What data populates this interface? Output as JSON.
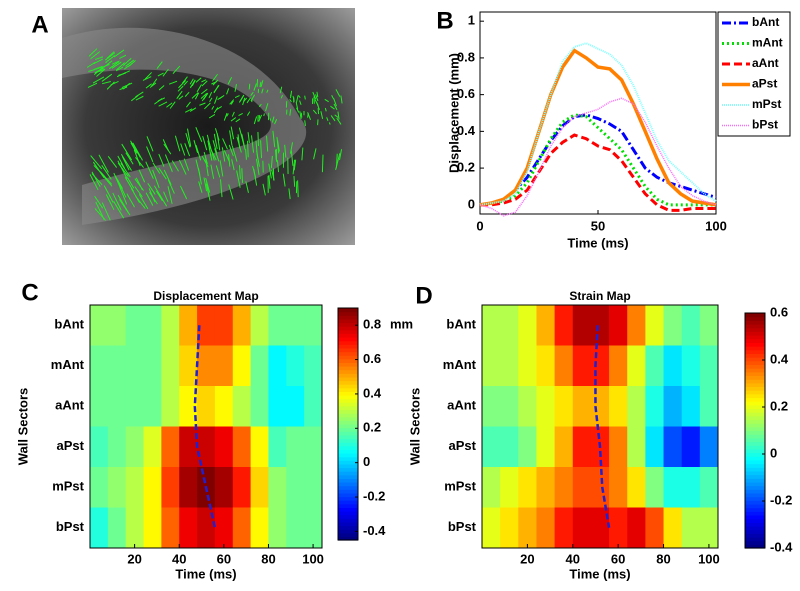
{
  "chart_data": [
    {
      "type": "image",
      "panel_label": "A"
    },
    {
      "type": "line",
      "panel_label": "B",
      "y_label": "Displacement (mm)",
      "x_label": "Time (ms)",
      "x": [
        0,
        5,
        10,
        15,
        20,
        25,
        30,
        35,
        40,
        45,
        50,
        55,
        60,
        65,
        70,
        75,
        80,
        85,
        90,
        95,
        100
      ],
      "xlim": [
        0,
        100
      ],
      "xticks": [
        0,
        50,
        100
      ],
      "ylim": [
        -0.05,
        1.05
      ],
      "yticks": [
        0,
        0.2,
        0.4,
        0.6,
        0.8,
        1
      ],
      "grid": false,
      "legend": "outside-right",
      "series": [
        {
          "name": "bAnt",
          "color": "#0000ff",
          "dash": "9,3,2,3",
          "width": 3,
          "values": [
            0,
            0.01,
            0.03,
            0.08,
            0.15,
            0.25,
            0.35,
            0.43,
            0.48,
            0.49,
            0.47,
            0.44,
            0.4,
            0.3,
            0.2,
            0.15,
            0.12,
            0.1,
            0.08,
            0.06,
            0.04
          ]
        },
        {
          "name": "mAnt",
          "color": "#00e000",
          "dash": "2,3",
          "width": 3,
          "values": [
            0,
            0.01,
            0.02,
            0.05,
            0.12,
            0.24,
            0.36,
            0.45,
            0.49,
            0.48,
            0.42,
            0.36,
            0.3,
            0.2,
            0.1,
            0.03,
            0,
            0,
            0,
            0,
            0
          ]
        },
        {
          "name": "aAnt",
          "color": "#ff0000",
          "dash": "8,4",
          "width": 3,
          "values": [
            0,
            0,
            0.01,
            0.03,
            0.08,
            0.18,
            0.28,
            0.34,
            0.38,
            0.36,
            0.32,
            0.3,
            0.24,
            0.15,
            0.06,
            0,
            -0.03,
            -0.03,
            -0.02,
            -0.02,
            -0.02
          ]
        },
        {
          "name": "aPst",
          "color": "#ff8000",
          "dash": "none",
          "width": 3.5,
          "values": [
            0,
            0.01,
            0.03,
            0.08,
            0.2,
            0.4,
            0.6,
            0.75,
            0.84,
            0.8,
            0.75,
            0.74,
            0.68,
            0.55,
            0.4,
            0.25,
            0.12,
            0.06,
            0.02,
            0.01,
            0
          ]
        },
        {
          "name": "mPst",
          "color": "#80ffff",
          "dash": "1,1",
          "width": 2,
          "values": [
            0,
            0.01,
            0.02,
            0.06,
            0.18,
            0.4,
            0.6,
            0.78,
            0.86,
            0.88,
            0.85,
            0.82,
            0.76,
            0.65,
            0.5,
            0.35,
            0.24,
            0.18,
            0.12,
            0.06,
            0.02
          ]
        },
        {
          "name": "bPst",
          "color": "#ff66ff",
          "dash": "1,1",
          "width": 1.5,
          "values": [
            0,
            -0.02,
            -0.06,
            -0.04,
            0.05,
            0.18,
            0.32,
            0.42,
            0.48,
            0.5,
            0.52,
            0.56,
            0.58,
            0.55,
            0.45,
            0.32,
            0.2,
            0.1,
            0.05,
            0.02,
            0
          ]
        }
      ]
    },
    {
      "type": "heatmap",
      "panel_label": "C",
      "title": "Displacement Map",
      "y_label": "Wall Sectors",
      "x_label": "Time (ms)",
      "categories": [
        "bAnt",
        "mAnt",
        "aAnt",
        "aPst",
        "mPst",
        "bPst"
      ],
      "bins": [
        0,
        8,
        16,
        24,
        32,
        40,
        48,
        56,
        64,
        72,
        80,
        88,
        96,
        104
      ],
      "xlim": [
        0,
        104
      ],
      "xticks": [
        20,
        40,
        60,
        80,
        100
      ],
      "clim": [
        -0.45,
        0.9
      ],
      "cticks": [
        -0.4,
        -0.2,
        0,
        0.2,
        0.4,
        0.6,
        0.8
      ],
      "colorbar_unit": "mm",
      "curve_color": "#2020d0",
      "curve_x": [
        49,
        48,
        47,
        48,
        52,
        56
      ],
      "values": [
        [
          0.25,
          0.25,
          0.2,
          0.2,
          0.3,
          0.5,
          0.65,
          0.65,
          0.5,
          0.3,
          0.2,
          0.2,
          0.2
        ],
        [
          0.2,
          0.2,
          0.2,
          0.2,
          0.3,
          0.45,
          0.55,
          0.55,
          0.4,
          0.2,
          0.05,
          0.1,
          0.15
        ],
        [
          0.2,
          0.2,
          0.2,
          0.2,
          0.3,
          0.4,
          0.45,
          0.4,
          0.3,
          0.2,
          0.05,
          0.05,
          0.15
        ],
        [
          0.15,
          0.2,
          0.25,
          0.35,
          0.6,
          0.8,
          0.8,
          0.75,
          0.6,
          0.4,
          0.15,
          0.2,
          0.2
        ],
        [
          0.2,
          0.25,
          0.3,
          0.4,
          0.65,
          0.85,
          0.9,
          0.85,
          0.7,
          0.45,
          0.25,
          0.2,
          0.2
        ],
        [
          0.1,
          0.2,
          0.3,
          0.4,
          0.6,
          0.75,
          0.8,
          0.75,
          0.6,
          0.4,
          0.25,
          0.2,
          0.2
        ]
      ]
    },
    {
      "type": "heatmap",
      "panel_label": "D",
      "title": "Strain Map",
      "y_label": "Wall Sectors",
      "x_label": "Time (ms)",
      "categories": [
        "bAnt",
        "mAnt",
        "aAnt",
        "aPst",
        "mPst",
        "bPst"
      ],
      "bins": [
        0,
        8,
        16,
        24,
        32,
        40,
        48,
        56,
        64,
        72,
        80,
        88,
        96,
        104
      ],
      "xlim": [
        0,
        104
      ],
      "xticks": [
        20,
        40,
        60,
        80,
        100
      ],
      "clim": [
        -0.4,
        0.6
      ],
      "cticks": [
        -0.4,
        -0.2,
        0,
        0.2,
        0.4,
        0.6
      ],
      "curve_color": "#2020d0",
      "curve_x": [
        51,
        50,
        50,
        52,
        53,
        56
      ],
      "values": [
        [
          0.15,
          0.15,
          0.2,
          0.3,
          0.45,
          0.55,
          0.55,
          0.5,
          0.35,
          0.2,
          0.1,
          0.05,
          0.1
        ],
        [
          0.15,
          0.15,
          0.2,
          0.25,
          0.35,
          0.45,
          0.45,
          0.35,
          0.2,
          0.05,
          -0.05,
          0,
          0.05
        ],
        [
          0.1,
          0.1,
          0.15,
          0.2,
          0.25,
          0.3,
          0.3,
          0.25,
          0.15,
          0,
          -0.1,
          -0.05,
          0.05
        ],
        [
          0.05,
          0.05,
          0.1,
          0.2,
          0.3,
          0.45,
          0.45,
          0.35,
          0.15,
          -0.05,
          -0.2,
          -0.25,
          -0.15
        ],
        [
          0.15,
          0.2,
          0.25,
          0.3,
          0.35,
          0.4,
          0.4,
          0.35,
          0.25,
          0.1,
          0,
          0,
          0.05
        ],
        [
          0.2,
          0.25,
          0.3,
          0.35,
          0.45,
          0.5,
          0.5,
          0.45,
          0.5,
          0.4,
          0.25,
          0.15,
          0.15
        ]
      ]
    }
  ]
}
